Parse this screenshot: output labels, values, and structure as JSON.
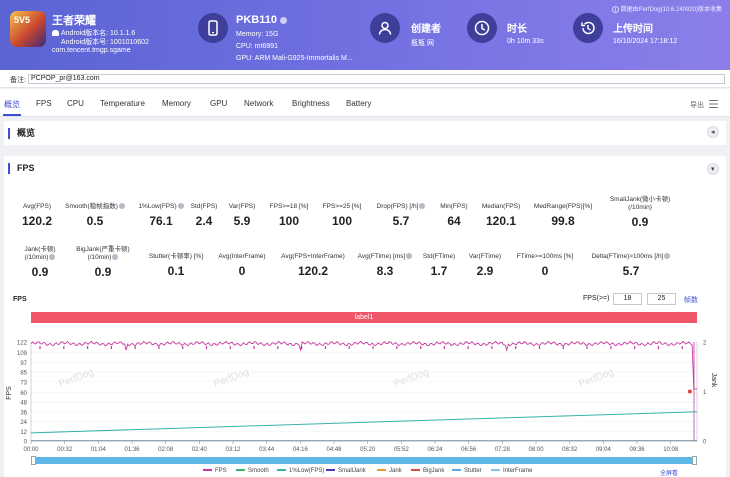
{
  "header": {
    "app": {
      "name": "王者荣耀",
      "android_version": "Android版本名: 10.1.1.6",
      "android_code": "Android版本号: 1001010602",
      "package": "com.tencent.tmgp.sgame",
      "icon_text": "5V5"
    },
    "device": {
      "name": "PKB110",
      "memory": "Memory: 15G",
      "cpu": "CPU: mt6991",
      "gpu": "GPU: ARM Mali-G925-Immortalis M..."
    },
    "creator": {
      "title": "创建者",
      "value": "瓶瓶 网"
    },
    "duration": {
      "title": "时长",
      "value": "0h 10m 33s"
    },
    "upload": {
      "title": "上传时间",
      "value": "16/10/2024 17:18:12"
    },
    "source": "数据由PerfDog(10.6.240920)版本收集"
  },
  "remark": {
    "label": "备注:",
    "value": "PCPOP_pr@163.com"
  },
  "tabs": [
    "概览",
    "FPS",
    "CPU",
    "Temperature",
    "Memory",
    "GPU",
    "Network",
    "Brightness",
    "Battery"
  ],
  "export_label": "导出",
  "overview": {
    "title": "概览"
  },
  "fps_panel": {
    "title": "FPS",
    "stats_row1": [
      {
        "label": "Avg(FPS)",
        "value": "120.2"
      },
      {
        "label": "Smooth(稳帧指数)",
        "value": "0.5",
        "help": true
      },
      {
        "label": "1%Low(FPS)",
        "value": "76.1",
        "help": true
      },
      {
        "label": "Std(FPS)",
        "value": "2.4"
      },
      {
        "label": "Var(FPS)",
        "value": "5.9"
      },
      {
        "label": "FPS>=18 [%]",
        "value": "100"
      },
      {
        "label": "FPS>=25 [%]",
        "value": "100"
      },
      {
        "label": "Drop(FPS) [/h]",
        "value": "5.7",
        "help": true
      },
      {
        "label": "Min(FPS)",
        "value": "64"
      },
      {
        "label": "Median(FPS)",
        "value": "120.1"
      },
      {
        "label": "MedRange(FPS)[%]",
        "value": "99.8"
      },
      {
        "label": "SmallJank(微小卡顿)",
        "label2": "(/10min)",
        "value": "0.9"
      }
    ],
    "stats_row2": [
      {
        "label": "Jank(卡顿)",
        "label2": "(/10min)",
        "value": "0.9",
        "help": true
      },
      {
        "label": "BigJank(严重卡顿)",
        "label2": "(/10min)",
        "value": "0.9",
        "help": true
      },
      {
        "label": "Stutter(卡顿率) [%]",
        "value": "0.1"
      },
      {
        "label": "Avg(InterFrame)",
        "value": "0"
      },
      {
        "label": "Avg(FPS+InterFrame)",
        "value": "120.2"
      },
      {
        "label": "Avg(FTime) [ms]",
        "value": "8.3",
        "help": true
      },
      {
        "label": "Std(FTime)",
        "value": "1.7"
      },
      {
        "label": "Var(FTime)",
        "value": "2.9"
      },
      {
        "label": "FTime>=100ms [%]",
        "value": "0"
      },
      {
        "label": "Delta(FTime)>100ms [/h]",
        "value": "5.7",
        "help": true
      }
    ],
    "chart_label": "FPS",
    "threshold_label": "FPS(>=)",
    "threshold_1": "18",
    "threshold_2": "25",
    "threshold_unit": "帧数",
    "band_label": "label1",
    "fullscreen_label": "全屏看"
  },
  "chart_data": {
    "type": "line",
    "ylabel": "FPS",
    "ylabel_right": "Jank",
    "ylim": [
      0,
      122
    ],
    "y2lim": [
      0,
      2
    ],
    "y_ticks": [
      0,
      12,
      24,
      36,
      48,
      60,
      73,
      85,
      97,
      109,
      122
    ],
    "y2_ticks": [
      0,
      1,
      2
    ],
    "x_ticks": [
      "00:00",
      "00:32",
      "01:04",
      "01:36",
      "02:08",
      "02:40",
      "03:12",
      "03:44",
      "04:16",
      "04:48",
      "05:20",
      "05:52",
      "06:24",
      "06:56",
      "07:28",
      "08:00",
      "08:32",
      "09:04",
      "09:36",
      "10:08"
    ],
    "x_range_seconds": [
      0,
      633
    ],
    "watermark": "PerfDog",
    "series": [
      {
        "name": "FPS",
        "color": "#c7399d",
        "approx": "≈120 throughout, brief dips to ~64 at the end"
      },
      {
        "name": "Smooth",
        "color": "#3cb371"
      },
      {
        "name": "1%Low(FPS)",
        "color": "#36b3a8",
        "start": 10,
        "end": 36
      },
      {
        "name": "SmallJank",
        "color": "#4a3bb5"
      },
      {
        "name": "Jank",
        "color": "#f0962f"
      },
      {
        "name": "BigJank",
        "color": "#e04848",
        "points": [
          {
            "x": 630,
            "y": 1
          }
        ]
      },
      {
        "name": "Stutter",
        "color": "#5aa9e6"
      },
      {
        "name": "InterFrame",
        "color": "#7ec8e3"
      }
    ]
  }
}
